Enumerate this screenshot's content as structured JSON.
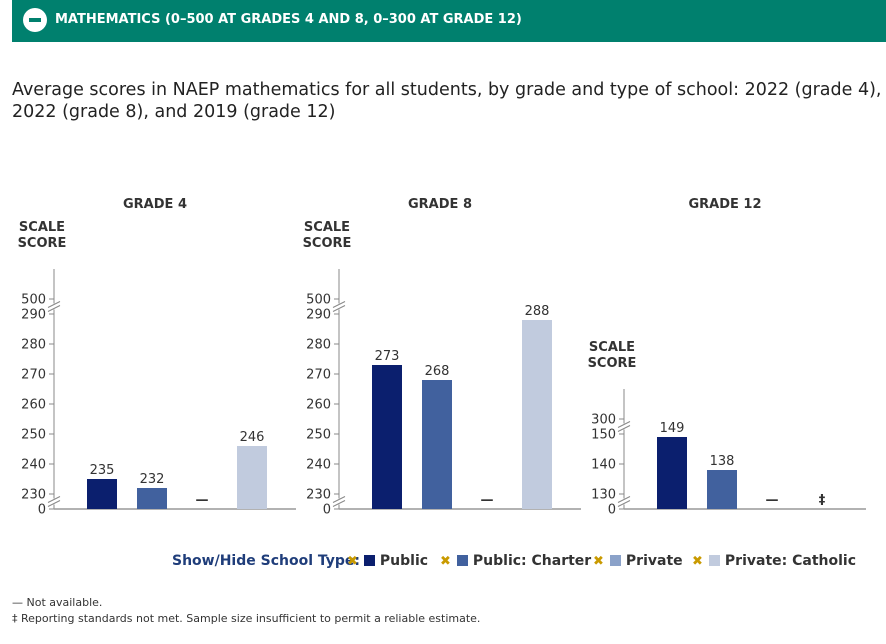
{
  "banner": {
    "title": "MATHEMATICS (0–500 AT GRADES 4 AND 8, 0–300 AT GRADE 12)",
    "icon": "minus-circle-icon"
  },
  "title": "Average scores in NAEP mathematics for all students, by grade and type of school: 2022 (grade 4), 2022 (grade 8), and 2019 (grade 12)",
  "colors": {
    "banner": "#00806e",
    "public": "#0b1f6e",
    "charter": "#41619e",
    "private": "#8ba2c9",
    "catholic": "#c1cbde",
    "toggle": "#c99a00"
  },
  "legend": {
    "label": "Show/Hide School Type:",
    "items": [
      {
        "label": "Public",
        "color": "#0b1f6e"
      },
      {
        "label": "Public: Charter",
        "color": "#41619e"
      },
      {
        "label": "Private",
        "color": "#8ba2c9"
      },
      {
        "label": "Private: Catholic",
        "color": "#c1cbde"
      }
    ]
  },
  "notes": {
    "not_available": "— Not available.",
    "reporting": "‡ Reporting standards not met. Sample size insufficient to permit a reliable estimate."
  },
  "chart_data": [
    {
      "type": "bar",
      "title": "GRADE 4",
      "ylabel_lines": [
        "SCALE",
        "SCORE"
      ],
      "categories": [
        "Public",
        "Public: Charter",
        "Private",
        "Private: Catholic"
      ],
      "values": [
        235,
        232,
        null,
        246
      ],
      "labels": [
        "235",
        "232",
        "—",
        "246"
      ],
      "colors": [
        "#0b1f6e",
        "#41619e",
        "#8ba2c9",
        "#c1cbde"
      ],
      "ylim": [
        225,
        290
      ],
      "ticks": [
        "0",
        "230",
        "240",
        "250",
        "260",
        "270",
        "280",
        "290",
        "500"
      ],
      "tick_values": [
        225,
        230,
        240,
        250,
        260,
        270,
        280,
        290,
        295
      ]
    },
    {
      "type": "bar",
      "title": "GRADE 8",
      "ylabel_lines": [
        "SCALE",
        "SCORE"
      ],
      "categories": [
        "Public",
        "Public: Charter",
        "Private",
        "Private: Catholic"
      ],
      "values": [
        273,
        268,
        null,
        288
      ],
      "labels": [
        "273",
        "268",
        "—",
        "288"
      ],
      "colors": [
        "#0b1f6e",
        "#41619e",
        "#8ba2c9",
        "#c1cbde"
      ],
      "ylim": [
        225,
        290
      ],
      "ticks": [
        "0",
        "230",
        "240",
        "250",
        "260",
        "270",
        "280",
        "290",
        "500"
      ],
      "tick_values": [
        225,
        230,
        240,
        250,
        260,
        270,
        280,
        290,
        295
      ]
    },
    {
      "type": "bar",
      "title": "GRADE 12",
      "ylabel_lines": [
        "SCALE",
        "SCORE"
      ],
      "categories": [
        "Public",
        "Public: Charter",
        "Private",
        "Private: Catholic"
      ],
      "values": [
        149,
        138,
        null,
        null
      ],
      "labels": [
        "149",
        "138",
        "—",
        "‡"
      ],
      "colors": [
        "#0b1f6e",
        "#41619e",
        "#8ba2c9",
        "#c1cbde"
      ],
      "ylim": [
        125,
        150
      ],
      "ticks": [
        "0",
        "130",
        "140",
        "150",
        "300"
      ],
      "tick_values": [
        125,
        130,
        140,
        150,
        155
      ]
    }
  ]
}
